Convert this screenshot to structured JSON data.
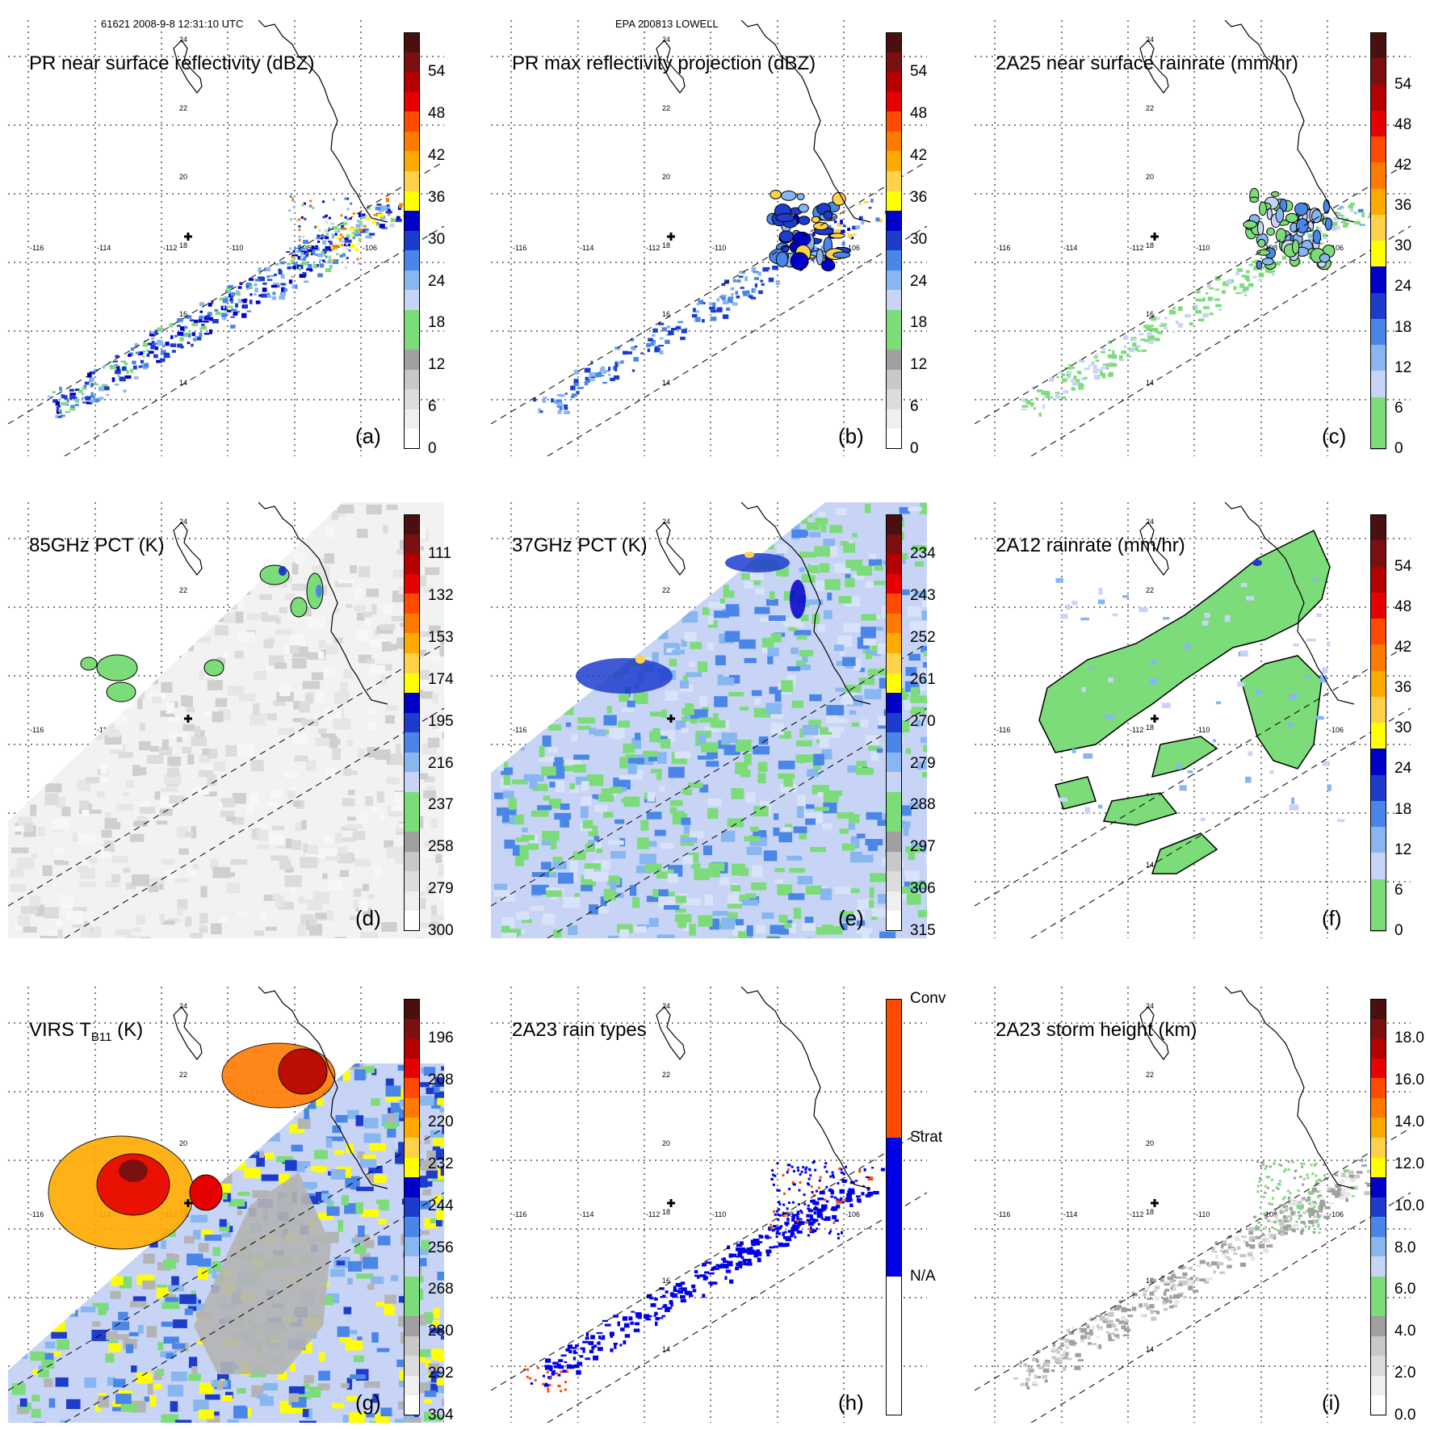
{
  "header": {
    "left": "61621 2008-9-8 12:31:10 UTC",
    "center": "EPA 200813 LOWELL"
  },
  "lon_labels": [
    "-116",
    "-114",
    "-112",
    "-110",
    "-108",
    "-106"
  ],
  "lat_labels": [
    "14",
    "16",
    "18",
    "20",
    "22",
    "24"
  ],
  "panels": [
    {
      "title": "PR near surface reflectivity (dBZ)",
      "label": "(a)"
    },
    {
      "title": "PR max reflectivity projection (dBZ)",
      "label": "(b)"
    },
    {
      "title": "2A25 near surface rainrate (mm/hr)",
      "label": "(c)"
    },
    {
      "title": "85GHz PCT (K)",
      "label": "(d)"
    },
    {
      "title": "37GHz PCT (K)",
      "label": "(e)"
    },
    {
      "title": "2A12 rainrate (mm/hr)",
      "label": "(f)"
    },
    {
      "title_main": "VIRS T",
      "title_sub": "B11",
      "title_unit": " (K)",
      "label": "(g)"
    },
    {
      "title": "2A23 rain types",
      "label": "(h)"
    },
    {
      "title": "2A23 storm height (km)",
      "label": "(i)"
    }
  ],
  "colorbars": {
    "dbz": [
      "54",
      "48",
      "42",
      "36",
      "30",
      "24",
      "18",
      "12",
      "6",
      "0"
    ],
    "rain": [
      "54",
      "48",
      "42",
      "36",
      "30",
      "24",
      "18",
      "12",
      "6",
      "0"
    ],
    "pct85": [
      "111",
      "132",
      "153",
      "174",
      "195",
      "216",
      "237",
      "258",
      "279",
      "300"
    ],
    "pct37": [
      "234",
      "243",
      "252",
      "261",
      "270",
      "279",
      "288",
      "297",
      "306",
      "315"
    ],
    "virs": [
      "196",
      "208",
      "220",
      "232",
      "244",
      "256",
      "268",
      "280",
      "292",
      "304"
    ],
    "raintype": [
      "Conv",
      "Strat",
      "N/A"
    ],
    "height": [
      "18.0",
      "16.0",
      "14.0",
      "12.0",
      "10.0",
      "8.0",
      "6.0",
      "4.0",
      "2.0",
      "0.0"
    ]
  },
  "colors": {
    "scale_a": [
      "#ffffff",
      "#e6e6e6",
      "#c8c8c8",
      "#a0a0a0",
      "#7ddc7a",
      "#c8d4f5",
      "#87b6f0",
      "#4a86e8",
      "#1e3ccc",
      "#0000c8",
      "#ffff00",
      "#ffd24a",
      "#ffaa00",
      "#ff7a00",
      "#ff4a00",
      "#e60000",
      "#b40000",
      "#7a1010",
      "#4a1010"
    ],
    "scale_rain": [
      "#7ddc7a",
      "#7ddc7a",
      "#c8d4f5",
      "#87b6f0",
      "#4a86e8",
      "#1e3ccc",
      "#0000c8",
      "#ffff00",
      "#ffd24a",
      "#ffaa00",
      "#ff7a00",
      "#ff4a00",
      "#e60000",
      "#b40000",
      "#7a1010",
      "#4a1010"
    ],
    "raintype": [
      "#ff4a00",
      "#0000e6",
      "#ffffff"
    ]
  }
}
